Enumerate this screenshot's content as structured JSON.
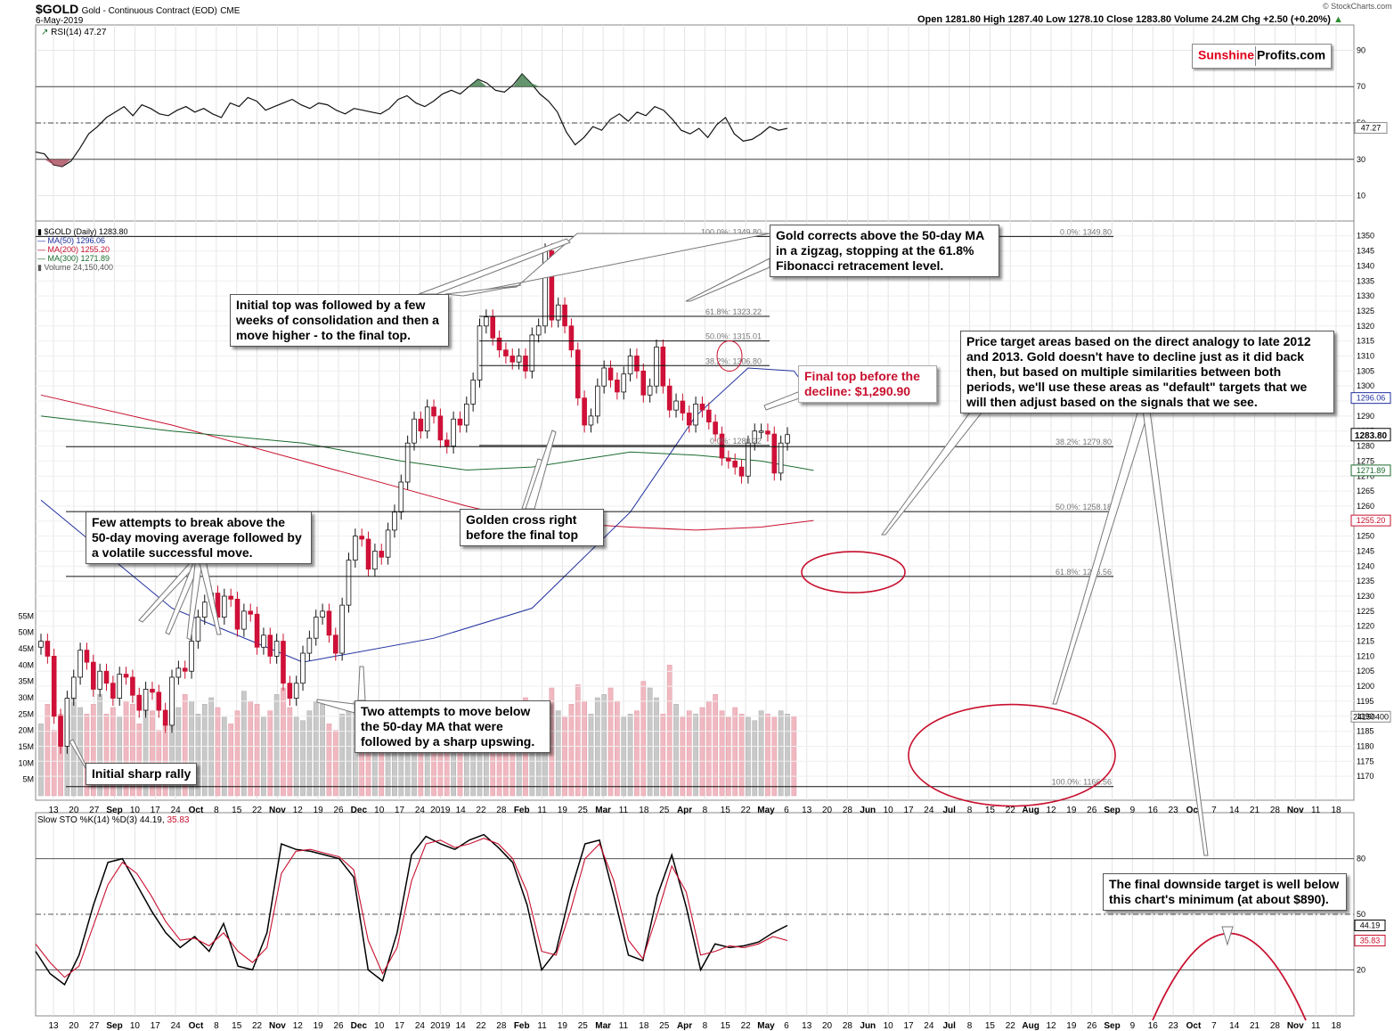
{
  "header": {
    "symbol": "$GOLD",
    "name": "Gold - Continuous Contract (EOD)",
    "exchange": "CME",
    "date": "6-May-2019",
    "quote": "Open 1281.80  High 1287.40  Low 1278.10  Close 1283.80  Volume 24.2M  Chg +2.50 (+0.20%)",
    "quote_arrow": "▲",
    "copyright": "© StockCharts.com"
  },
  "logo": {
    "part1": "Sunshine",
    "part2": "Profits.com"
  },
  "rsi_legend": "RSI(14) 47.27",
  "price_legend": {
    "gold": "$GOLD (Daily) 1283.80",
    "ma50": "MA(50) 1296.06",
    "ma200": "MA(200) 1255.20",
    "ma300": "MA(300) 1271.89",
    "volume": "Volume 24,150,400"
  },
  "sto_legend_k": "Slow STO %K(14) %D(3) 44.19,",
  "sto_legend_d": "35.83",
  "callouts": {
    "fib_zigzag": "Gold corrects above the 50-day MA in a zigzag, stopping at the 61.8% Fibonacci retracement level.",
    "initial_top": "Initial top was followed by a few weeks of consolidation and  then a move higher - to the final top.",
    "price_target": "Price target areas based on the direct analogy to late 2012 and 2013. Gold doesn't have to decline just as it did back then, but based on multiple similarities between both periods, we'll use these areas as \"default\" targets that we will then adjust based on the signals that we see.",
    "final_top": "Final top before the decline: $1,290.90",
    "few_attempts": "Few attempts to break above the 50-day moving average followed by a volatile successful move.",
    "golden_cross": "Golden cross right before the final top",
    "two_attempts": "Two attempts to move below the 50-day MA that were followed by a sharp upswing.",
    "initial_rally": "Initial sharp rally",
    "downside_target": "The final downside target is well below this chart's minimum (at about $890)."
  },
  "chart_data": [
    {
      "type": "line",
      "name": "RSI(14)",
      "title": "RSI(14) 47.27",
      "ylim": [
        0,
        100
      ],
      "ticks": [
        "10",
        "30",
        "50",
        "70",
        "90"
      ],
      "reference_lines": [
        30,
        50,
        70
      ],
      "last_value_label": "47.27",
      "values": [
        34,
        33,
        27,
        26,
        29,
        36,
        44,
        48,
        53,
        56,
        59,
        54,
        60,
        58,
        55,
        54,
        57,
        59,
        56,
        58,
        55,
        53,
        61,
        59,
        64,
        62,
        57,
        59,
        61,
        63,
        60,
        58,
        61,
        60,
        57,
        55,
        58,
        57,
        56,
        55,
        58,
        63,
        65,
        61,
        59,
        62,
        66,
        68,
        66,
        70,
        74,
        72,
        68,
        67,
        71,
        77,
        72,
        66,
        62,
        56,
        45,
        38,
        42,
        48,
        46,
        52,
        55,
        51,
        56,
        54,
        59,
        57,
        52,
        46,
        44,
        47,
        42,
        49,
        53,
        44,
        40,
        41,
        44,
        48,
        46,
        47
      ]
    },
    {
      "type": "candlestick",
      "name": "$GOLD (Daily)",
      "title": "$GOLD (Daily) 1283.80",
      "ylim": [
        1165,
        1352
      ],
      "ytick_step": 5,
      "close_label": "1283.80",
      "x_labels": [
        "13",
        "20",
        "27",
        "Sep",
        "10",
        "17",
        "24",
        "Oct",
        "8",
        "15",
        "22",
        "Nov",
        "12",
        "19",
        "26",
        "Dec",
        "10",
        "17",
        "24",
        "2019",
        "14",
        "22",
        "28",
        "Feb",
        "11",
        "19",
        "25",
        "Mar",
        "11",
        "18",
        "25",
        "Apr",
        "8",
        "15",
        "22",
        "May",
        "6",
        "13",
        "20",
        "28",
        "Jun",
        "10",
        "17",
        "24",
        "Jul",
        "8",
        "15",
        "22",
        "Aug",
        "12",
        "19",
        "26",
        "Sep",
        "9",
        "16",
        "23",
        "Oct",
        "7",
        "14",
        "21",
        "28",
        "Nov",
        "11",
        "18"
      ],
      "closes": [
        1215,
        1210,
        1190,
        1180,
        1196,
        1203,
        1212,
        1208,
        1199,
        1205,
        1201,
        1196,
        1204,
        1203,
        1197,
        1192,
        1199,
        1198,
        1192,
        1187,
        1203,
        1206,
        1205,
        1215,
        1223,
        1228,
        1231,
        1223,
        1230,
        1229,
        1219,
        1225,
        1224,
        1213,
        1217,
        1210,
        1215,
        1201,
        1196,
        1201,
        1211,
        1216,
        1223,
        1225,
        1217,
        1211,
        1227,
        1242,
        1250,
        1249,
        1239,
        1245,
        1243,
        1252,
        1258,
        1268,
        1281,
        1289,
        1285,
        1293,
        1290,
        1282,
        1280,
        1289,
        1287,
        1294,
        1302,
        1320,
        1323,
        1316,
        1312,
        1310,
        1308,
        1310,
        1305,
        1317,
        1320,
        1345,
        1322,
        1327,
        1320,
        1312,
        1296,
        1287,
        1290,
        1300,
        1306,
        1302,
        1298,
        1304,
        1310,
        1305,
        1297,
        1300,
        1313,
        1300,
        1292,
        1295,
        1291,
        1287,
        1294,
        1292,
        1288,
        1284,
        1276,
        1275,
        1273,
        1270,
        1281,
        1285,
        1285,
        1284,
        1271,
        1281,
        1283.8
      ]
    },
    {
      "type": "line",
      "name": "MA(50)",
      "value_label": "1296.06",
      "color": "#1f2f9e",
      "x": [
        0,
        20,
        40,
        60,
        75,
        90,
        100,
        108,
        115,
        118
      ],
      "values": [
        1262,
        1226,
        1208,
        1216,
        1226,
        1258,
        1290,
        1306,
        1305,
        1296
      ]
    },
    {
      "type": "line",
      "name": "MA(200)",
      "value_label": "1255.20",
      "color": "#c8102e",
      "x": [
        0,
        20,
        40,
        55,
        65,
        75,
        90,
        100,
        110,
        118
      ],
      "values": [
        1297,
        1287,
        1275,
        1266,
        1260,
        1255,
        1253,
        1252,
        1253,
        1255.2
      ]
    },
    {
      "type": "line",
      "name": "MA(300)",
      "value_label": "1271.89",
      "color": "#1b6b2e",
      "x": [
        0,
        20,
        40,
        55,
        65,
        75,
        90,
        100,
        110,
        118
      ],
      "values": [
        1290,
        1285,
        1281,
        1275,
        1272,
        1273,
        1278,
        1277,
        1275,
        1271.89
      ]
    },
    {
      "type": "bar",
      "name": "Volume",
      "value_label": "24150400",
      "ticks": [
        "5M",
        "10M",
        "15M",
        "20M",
        "25M",
        "30M",
        "35M",
        "40M",
        "45M",
        "50M",
        "55M"
      ],
      "values": [
        22,
        28,
        20,
        25,
        24,
        33,
        27,
        25,
        28,
        31,
        25,
        27,
        24,
        29,
        28,
        22,
        30,
        26,
        20,
        23,
        26,
        27,
        31,
        29,
        25,
        28,
        30,
        27,
        24,
        22,
        26,
        32,
        29,
        28,
        24,
        26,
        31,
        33,
        27,
        24,
        23,
        26,
        29,
        28,
        22,
        20,
        25,
        27,
        29,
        30,
        28,
        26,
        24,
        27,
        21,
        23,
        26,
        28,
        22,
        19,
        21,
        20,
        23,
        27,
        26,
        18,
        17,
        16,
        18,
        20,
        22,
        19,
        21,
        24,
        30,
        25,
        28,
        27,
        33,
        26,
        24,
        28,
        34,
        29,
        25,
        30,
        31,
        33,
        29,
        24,
        25,
        26,
        35,
        33,
        30,
        25,
        40,
        28,
        24,
        26,
        25,
        27,
        29,
        31,
        26,
        24,
        27,
        25,
        24,
        23,
        26,
        25,
        24,
        26,
        25,
        24.2
      ]
    },
    {
      "type": "line",
      "name": "Slow STO %K(14) %D(3)",
      "title": "Slow STO %K(14) %D(3) 44.19, 35.83",
      "ylim": [
        0,
        100
      ],
      "ticks": [
        "20",
        "50",
        "80"
      ],
      "reference_lines": [
        20,
        50,
        80
      ],
      "series": [
        {
          "name": "%K",
          "color": "#000000",
          "value_label": "44.19",
          "values": [
            30,
            18,
            12,
            28,
            55,
            78,
            80,
            66,
            52,
            40,
            32,
            38,
            30,
            45,
            22,
            20,
            40,
            88,
            85,
            84,
            82,
            80,
            70,
            20,
            14,
            40,
            82,
            92,
            88,
            85,
            90,
            93,
            86,
            78,
            55,
            20,
            30,
            62,
            88,
            90,
            60,
            28,
            25,
            60,
            82,
            54,
            20,
            34,
            32,
            33,
            35,
            40,
            44
          ]
        },
        {
          "name": "%D",
          "color": "#c8102e",
          "value_label": "35.83",
          "values": [
            34,
            24,
            16,
            22,
            44,
            66,
            78,
            72,
            60,
            46,
            36,
            37,
            33,
            40,
            30,
            24,
            32,
            72,
            84,
            85,
            83,
            81,
            74,
            36,
            18,
            32,
            68,
            88,
            90,
            86,
            88,
            91,
            88,
            80,
            62,
            30,
            28,
            52,
            80,
            88,
            68,
            36,
            26,
            50,
            76,
            62,
            28,
            30,
            33,
            32,
            34,
            38,
            35.83
          ]
        }
      ]
    },
    {
      "type": "table",
      "name": "Fibonacci retracement levels",
      "labels": [
        "100.0%: 1349.80",
        "61.8%: 1323.22",
        "50.0%: 1315.01",
        "38.2%: 1306.80",
        "0.0%: 1280.22",
        "0.0%: 1349.80",
        "38.2%: 1279.80",
        "50.0%: 1258.18",
        "61.8%: 1236.56",
        "100.0%: 1166.56"
      ],
      "values": [
        1349.8,
        1323.22,
        1315.01,
        1306.8,
        1280.22,
        1349.8,
        1279.8,
        1258.18,
        1236.56,
        1166.56
      ]
    }
  ]
}
